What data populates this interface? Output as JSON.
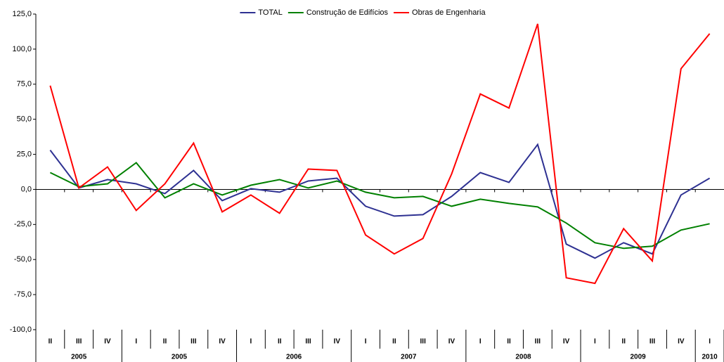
{
  "chart_data": {
    "type": "line",
    "groups": [
      {
        "label": "2005",
        "categories": [
          "II",
          "III",
          "IV"
        ]
      },
      {
        "label": "2005",
        "categories": [
          "I",
          "II",
          "III",
          "IV"
        ]
      },
      {
        "label": "2006",
        "categories": [
          "I",
          "II",
          "III",
          "IV"
        ]
      },
      {
        "label": "2007",
        "categories": [
          "I",
          "II",
          "III",
          "IV"
        ]
      },
      {
        "label": "2008",
        "categories": [
          "I",
          "II",
          "III",
          "IV"
        ]
      },
      {
        "label": "2009",
        "categories": [
          "I",
          "II",
          "III",
          "IV"
        ]
      },
      {
        "label": "2010",
        "categories": [
          "I"
        ]
      }
    ],
    "series": [
      {
        "name": "TOTAL",
        "color": "#2e3192",
        "values": [
          28,
          1,
          7,
          4,
          -3,
          13.5,
          -8,
          0.5,
          -2,
          6,
          8,
          -12,
          -19,
          -18,
          -5,
          12,
          5,
          32,
          -39,
          -49,
          -38,
          -46,
          -4,
          8
        ]
      },
      {
        "name": "Construção de Edifícios",
        "color": "#008000",
        "values": [
          12,
          2,
          4,
          19,
          -6,
          4,
          -4,
          3,
          7,
          1,
          6,
          -2,
          -6,
          -5,
          -12,
          -7,
          -10,
          -12.5,
          -24,
          -38,
          -42,
          -40.5,
          -29,
          -24.5
        ]
      },
      {
        "name": "Obras de Engenharia",
        "color": "#ff0000",
        "values": [
          74,
          1,
          16,
          -15,
          4,
          33,
          -16,
          -4,
          -17,
          14.5,
          13.5,
          -32.5,
          -46,
          -35,
          11,
          68,
          58,
          118,
          -63,
          -67,
          -28,
          -51,
          86,
          111
        ]
      }
    ],
    "ylim": [
      -100,
      125
    ],
    "yticks": [
      {
        "value": -100,
        "label": "-100,0"
      },
      {
        "value": -75,
        "label": "-75,0"
      },
      {
        "value": -50,
        "label": "-50,0"
      },
      {
        "value": -25,
        "label": "-25,0"
      },
      {
        "value": 0,
        "label": "0,0"
      },
      {
        "value": 25,
        "label": "25,0"
      },
      {
        "value": 50,
        "label": "50,0"
      },
      {
        "value": 75,
        "label": "75,0"
      },
      {
        "value": 100,
        "label": "100,0"
      },
      {
        "value": 125,
        "label": "125,0"
      }
    ]
  }
}
